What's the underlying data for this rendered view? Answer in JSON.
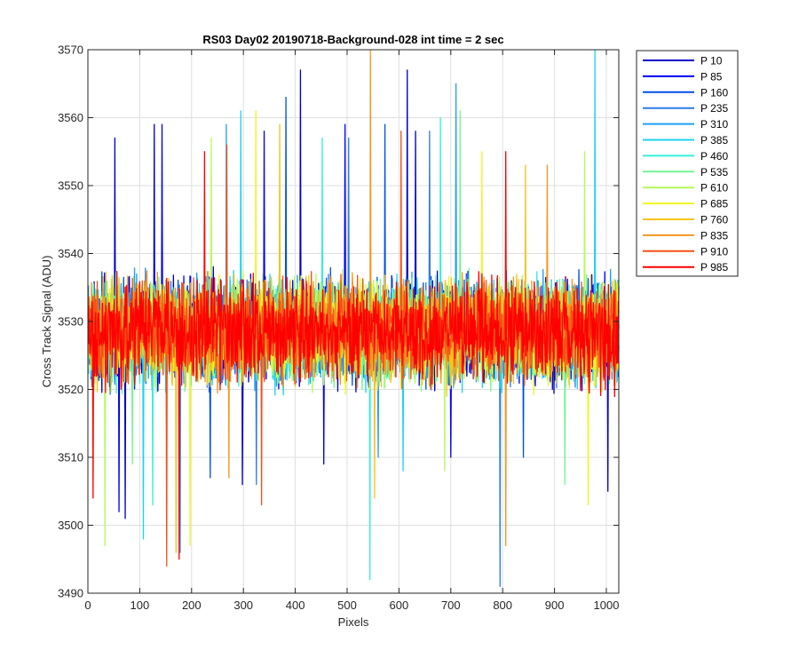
{
  "chart_data": {
    "type": "line",
    "title": "RS03 Day02 20190718-Background-028 int time = 2 sec",
    "xlabel": "Pixels",
    "ylabel": "Cross Track Signal (ADU)",
    "xlim": [
      0,
      1024
    ],
    "ylim": [
      3490,
      3570
    ],
    "x_ticks": [
      0,
      100,
      200,
      300,
      400,
      500,
      600,
      700,
      800,
      900,
      1000
    ],
    "y_ticks": [
      3490,
      3500,
      3510,
      3520,
      3530,
      3540,
      3550,
      3560,
      3570
    ],
    "grid": true,
    "legend_position": "outside-top-right",
    "x_range_points": [
      1,
      1024
    ],
    "series": [
      {
        "name": "P 10",
        "color": "#0000c8",
        "mean": 3528.5,
        "spread": 9,
        "extremes": [
          [
            52,
            3557
          ],
          [
            128,
            3559
          ],
          [
            410,
            3567
          ],
          [
            616,
            3567
          ],
          [
            632,
            3558
          ],
          [
            72,
            3501
          ],
          [
            298,
            3506
          ],
          [
            1003,
            3505
          ]
        ]
      },
      {
        "name": "P 85",
        "color": "#0000f5",
        "mean": 3528.5,
        "spread": 9,
        "extremes": [
          [
            143,
            3559
          ],
          [
            340,
            3558
          ],
          [
            496,
            3559
          ],
          [
            60,
            3502
          ],
          [
            455,
            3509
          ],
          [
            700,
            3510
          ]
        ]
      },
      {
        "name": "P 160",
        "color": "#0050e6",
        "mean": 3528.5,
        "spread": 9,
        "extremes": [
          [
            382,
            3563
          ],
          [
            573,
            3559
          ],
          [
            236,
            3507
          ],
          [
            840,
            3510
          ]
        ]
      },
      {
        "name": "P 235",
        "color": "#2d7ce6",
        "mean": 3528.5,
        "spread": 9,
        "extremes": [
          [
            503,
            3557
          ],
          [
            659,
            3558
          ],
          [
            795,
            3491
          ],
          [
            325,
            3506
          ]
        ]
      },
      {
        "name": "P 310",
        "color": "#1ea0f0",
        "mean": 3528.5,
        "spread": 9,
        "extremes": [
          [
            267,
            3559
          ],
          [
            710,
            3565
          ],
          [
            178,
            3496
          ],
          [
            560,
            3510
          ]
        ]
      },
      {
        "name": "P 385",
        "color": "#1ed2f0",
        "mean": 3528.5,
        "spread": 9,
        "extremes": [
          [
            295,
            3561
          ],
          [
            978,
            3570
          ],
          [
            107,
            3498
          ],
          [
            608,
            3508
          ]
        ]
      },
      {
        "name": "P 460",
        "color": "#32f0d7",
        "mean": 3528.5,
        "spread": 9,
        "extremes": [
          [
            452,
            3557
          ],
          [
            680,
            3560
          ],
          [
            544,
            3492
          ],
          [
            125,
            3503
          ]
        ]
      },
      {
        "name": "P 535",
        "color": "#73f596",
        "mean": 3528.5,
        "spread": 9,
        "extremes": [
          [
            718,
            3561
          ],
          [
            86,
            3509
          ],
          [
            920,
            3506
          ]
        ]
      },
      {
        "name": "P 610",
        "color": "#b4fa5a",
        "mean": 3528.5,
        "spread": 9,
        "extremes": [
          [
            238,
            3557
          ],
          [
            958,
            3555
          ],
          [
            33,
            3497
          ],
          [
            688,
            3508
          ]
        ]
      },
      {
        "name": "P 685",
        "color": "#f0f51e",
        "mean": 3528.5,
        "spread": 9,
        "extremes": [
          [
            324,
            3561
          ],
          [
            760,
            3555
          ],
          [
            197,
            3497
          ],
          [
            965,
            3503
          ]
        ]
      },
      {
        "name": "P 760",
        "color": "#f5c31e",
        "mean": 3528.5,
        "spread": 9,
        "extremes": [
          [
            370,
            3559
          ],
          [
            844,
            3553
          ],
          [
            170,
            3496
          ],
          [
            553,
            3504
          ]
        ]
      },
      {
        "name": "P 835",
        "color": "#f5961e",
        "mean": 3528.5,
        "spread": 9,
        "extremes": [
          [
            545,
            3570
          ],
          [
            886,
            3553
          ],
          [
            806,
            3497
          ],
          [
            272,
            3507
          ]
        ]
      },
      {
        "name": "P 910",
        "color": "#f55014",
        "mean": 3528.5,
        "spread": 9,
        "extremes": [
          [
            604,
            3558
          ],
          [
            268,
            3556
          ],
          [
            152,
            3494
          ],
          [
            335,
            3503
          ]
        ]
      },
      {
        "name": "P 985",
        "color": "#ff0000",
        "mean": 3528.5,
        "spread": 9,
        "extremes": [
          [
            225,
            3555
          ],
          [
            806,
            3555
          ],
          [
            176,
            3495
          ],
          [
            10,
            3504
          ]
        ]
      }
    ]
  }
}
